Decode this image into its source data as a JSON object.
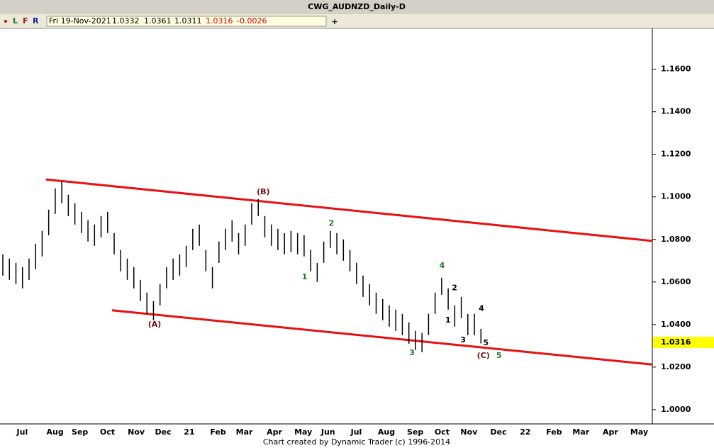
{
  "header": {
    "title": "CWG_AUDNZD_Daily-D",
    "buttons": [
      "L",
      "F",
      "R"
    ],
    "date": "Fri 19-Nov-2021",
    "open": 1.0332,
    "high": 1.0361,
    "low": 1.0311,
    "close": 1.0316,
    "change": -0.0026,
    "add": "+"
  },
  "footer": "Chart created by Dynamic Trader  (c) 1996-2014",
  "chart_data": {
    "type": "hilo",
    "color": "#000000",
    "x": [
      0,
      1,
      2,
      3,
      4,
      5,
      6,
      7,
      8,
      9,
      10,
      11,
      12,
      13,
      14,
      15,
      16,
      17,
      18,
      19,
      20,
      21,
      22,
      23,
      24,
      25,
      26,
      27,
      28,
      29,
      30,
      31,
      32,
      33,
      34,
      35,
      36,
      37,
      38,
      39,
      40,
      41,
      42,
      43,
      44,
      45,
      46,
      47,
      48,
      49,
      50,
      51,
      52,
      53,
      54,
      55,
      56,
      57,
      58,
      59,
      60,
      61,
      62,
      63,
      64,
      65,
      66,
      67,
      68,
      69,
      70,
      71,
      72,
      73
    ],
    "highs": [
      1.073,
      1.071,
      1.069,
      1.067,
      1.071,
      1.078,
      1.084,
      1.094,
      1.104,
      1.107,
      1.101,
      1.097,
      1.093,
      1.089,
      1.087,
      1.091,
      1.093,
      1.083,
      1.075,
      1.071,
      1.067,
      1.061,
      1.055,
      1.051,
      1.059,
      1.067,
      1.071,
      1.073,
      1.077,
      1.085,
      1.087,
      1.075,
      1.067,
      1.079,
      1.085,
      1.089,
      1.083,
      1.087,
      1.097,
      1.099,
      1.091,
      1.087,
      1.085,
      1.083,
      1.084,
      1.083,
      1.082,
      1.075,
      1.069,
      1.079,
      1.084,
      1.083,
      1.08,
      1.075,
      1.069,
      1.063,
      1.059,
      1.055,
      1.052,
      1.049,
      1.047,
      1.045,
      1.041,
      1.037,
      1.036,
      1.045,
      1.055,
      1.062,
      1.057,
      1.049,
      1.053,
      1.045,
      1.045,
      1.038
    ],
    "lows": [
      1.063,
      1.061,
      1.059,
      1.057,
      1.061,
      1.066,
      1.072,
      1.082,
      1.092,
      1.097,
      1.091,
      1.087,
      1.083,
      1.079,
      1.077,
      1.081,
      1.083,
      1.073,
      1.065,
      1.061,
      1.057,
      1.051,
      1.045,
      1.042,
      1.049,
      1.057,
      1.061,
      1.063,
      1.067,
      1.075,
      1.077,
      1.065,
      1.057,
      1.069,
      1.075,
      1.079,
      1.073,
      1.077,
      1.087,
      1.091,
      1.081,
      1.077,
      1.075,
      1.073,
      1.074,
      1.073,
      1.072,
      1.065,
      1.06,
      1.069,
      1.076,
      1.073,
      1.07,
      1.065,
      1.059,
      1.053,
      1.049,
      1.045,
      1.042,
      1.039,
      1.037,
      1.035,
      1.031,
      1.028,
      1.027,
      1.035,
      1.045,
      1.054,
      1.047,
      1.039,
      1.043,
      1.035,
      1.035,
      1.0311
    ],
    "xlim": [
      0,
      99.6
    ],
    "ylim": [
      0.9933,
      1.1792
    ],
    "yticks": [
      {
        "value": 1.0,
        "label": "1.0000"
      },
      {
        "value": 1.02,
        "label": "1.0200"
      },
      {
        "value": 1.04,
        "label": "1.0400"
      },
      {
        "value": 1.06,
        "label": "1.0600"
      },
      {
        "value": 1.08,
        "label": "1.0800"
      },
      {
        "value": 1.1,
        "label": "1.1000"
      },
      {
        "value": 1.12,
        "label": "1.1200"
      },
      {
        "value": 1.14,
        "label": "1.1400"
      },
      {
        "value": 1.16,
        "label": "1.1600"
      }
    ],
    "xticks": [
      {
        "value": 3.4,
        "label": "Jul"
      },
      {
        "value": 8.4,
        "label": "Aug"
      },
      {
        "value": 12.2,
        "label": "Sep"
      },
      {
        "value": 16.4,
        "label": "Oct"
      },
      {
        "value": 20.8,
        "label": "Nov"
      },
      {
        "value": 24.9,
        "label": "Dec"
      },
      {
        "value": 28.9,
        "label": "21"
      },
      {
        "value": 33.3,
        "label": "Feb"
      },
      {
        "value": 37.3,
        "label": "Mar"
      },
      {
        "value": 41.9,
        "label": "Apr"
      },
      {
        "value": 46.3,
        "label": "May"
      },
      {
        "value": 50.1,
        "label": "Jun"
      },
      {
        "value": 54.4,
        "label": "Jul"
      },
      {
        "value": 59.0,
        "label": "Aug"
      },
      {
        "value": 63.4,
        "label": "Sep"
      },
      {
        "value": 67.5,
        "label": "Oct"
      },
      {
        "value": 71.6,
        "label": "Nov"
      },
      {
        "value": 76.1,
        "label": "Dec"
      },
      {
        "value": 80.2,
        "label": "22"
      },
      {
        "value": 84.6,
        "label": "Feb"
      },
      {
        "value": 88.7,
        "label": "Mar"
      },
      {
        "value": 93.2,
        "label": "Apr"
      },
      {
        "value": 97.6,
        "label": "May"
      }
    ],
    "last_price": 1.0316,
    "last_price_color": "#ffff00",
    "channels": [
      {
        "x": [
          7.0,
          99.6
        ],
        "y": [
          1.1082,
          1.0793
        ],
        "color": "#e81010"
      },
      {
        "x": [
          17.1,
          99.6
        ],
        "y": [
          1.0467,
          1.0212
        ],
        "color": "#e81010"
      }
    ],
    "annotations": [
      {
        "text": "(A)",
        "x": 23.6,
        "y": 1.04,
        "color": "#6b0f0f"
      },
      {
        "text": "(B)",
        "x": 40.2,
        "y": 1.1022,
        "color": "#6b0f0f"
      },
      {
        "text": "1",
        "x": 46.5,
        "y": 1.0622,
        "color": "#1a7a1a"
      },
      {
        "text": "2",
        "x": 50.6,
        "y": 1.0874,
        "color": "#1a7a1a"
      },
      {
        "text": "3",
        "x": 62.9,
        "y": 1.0266,
        "color": "#1a7a1a"
      },
      {
        "text": "4",
        "x": 67.5,
        "y": 1.0676,
        "color": "#1a7a1a"
      },
      {
        "text": "5",
        "x": 76.2,
        "y": 1.0252,
        "color": "#1a7a1a"
      },
      {
        "text": "1",
        "x": 68.4,
        "y": 1.042,
        "color": "#000000"
      },
      {
        "text": "2",
        "x": 69.4,
        "y": 1.0571,
        "color": "#000000"
      },
      {
        "text": "3",
        "x": 70.7,
        "y": 1.0326,
        "color": "#000000"
      },
      {
        "text": "4",
        "x": 73.5,
        "y": 1.0474,
        "color": "#000000"
      },
      {
        "text": "5",
        "x": 74.2,
        "y": 1.0313,
        "color": "#000000"
      },
      {
        "text": "(C)",
        "x": 73.8,
        "y": 1.0252,
        "color": "#6b0f0f"
      }
    ]
  }
}
